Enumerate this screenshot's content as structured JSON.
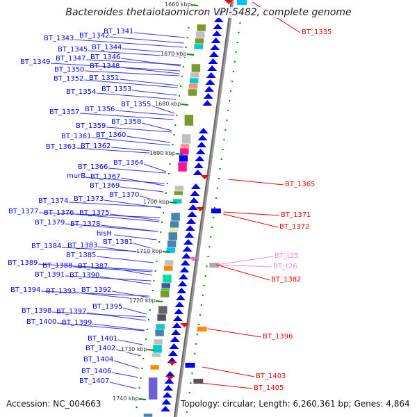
{
  "title": "Bacteroides thetaiotaomicron VPI-5482, complete genome",
  "footer": {
    "accession": "Accession: NC_004663",
    "summary": "Topology: circular; Length: 6,260,361 bp; Genes: 4,864"
  },
  "colors": {
    "forward_label": "#0000ee",
    "reverse_label": "#ee0000",
    "rna_label": "#ff88cc",
    "backbone": "#888888",
    "ticks": "#008800"
  },
  "kbp_ticks": [
    "1660 kbp",
    "1670 kbp",
    "1680 kbp",
    "1690 kbp",
    "1700 kbp",
    "1710 kbp",
    "1720 kbp",
    "1730 kbp",
    "1740 kbp"
  ],
  "left_labels": [
    "BT_1341",
    "BT_1342",
    "BT_1343",
    "BT_1344",
    "BT_1345",
    "BT_1346",
    "BT_1347",
    "BT_1348",
    "BT_1349",
    "BT_1350",
    "BT_1351",
    "BT_1352",
    "BT_1353",
    "BT_1354",
    "BT_1355",
    "BT_1356",
    "BT_1357",
    "BT_1358",
    "BT_1359",
    "BT_1360",
    "BT_1361",
    "BT_1362",
    "BT_1363",
    "BT_1364",
    "BT_1366",
    "murB",
    "BT_1367",
    "BT_1369",
    "BT_1370",
    "BT_1373",
    "BT_1374",
    "BT_1375",
    "BT_1376",
    "BT_1377",
    "BT_1378",
    "BT_1379",
    "hisH",
    "BT_1381",
    "BT_1383",
    "BT_1384",
    "BT_1385",
    "BT_1387",
    "BT_1388",
    "BT_1389",
    "BT_1390",
    "BT_1391",
    "BT_1392",
    "BT_1393",
    "BT_1394",
    "BT_1395",
    "BT_1397",
    "BT_1398",
    "BT_1399",
    "BT_1400",
    "BT_1401",
    "BT_1402",
    "BT_1404",
    "BT_1406",
    "BT_1407"
  ],
  "right_labels": [
    "BT_1335",
    "BT_1365",
    "BT_1371",
    "BT_1372",
    "BT_t25",
    "BT_t26",
    "BT_1382",
    "BT_1396",
    "BT_1403",
    "BT_1405"
  ]
}
